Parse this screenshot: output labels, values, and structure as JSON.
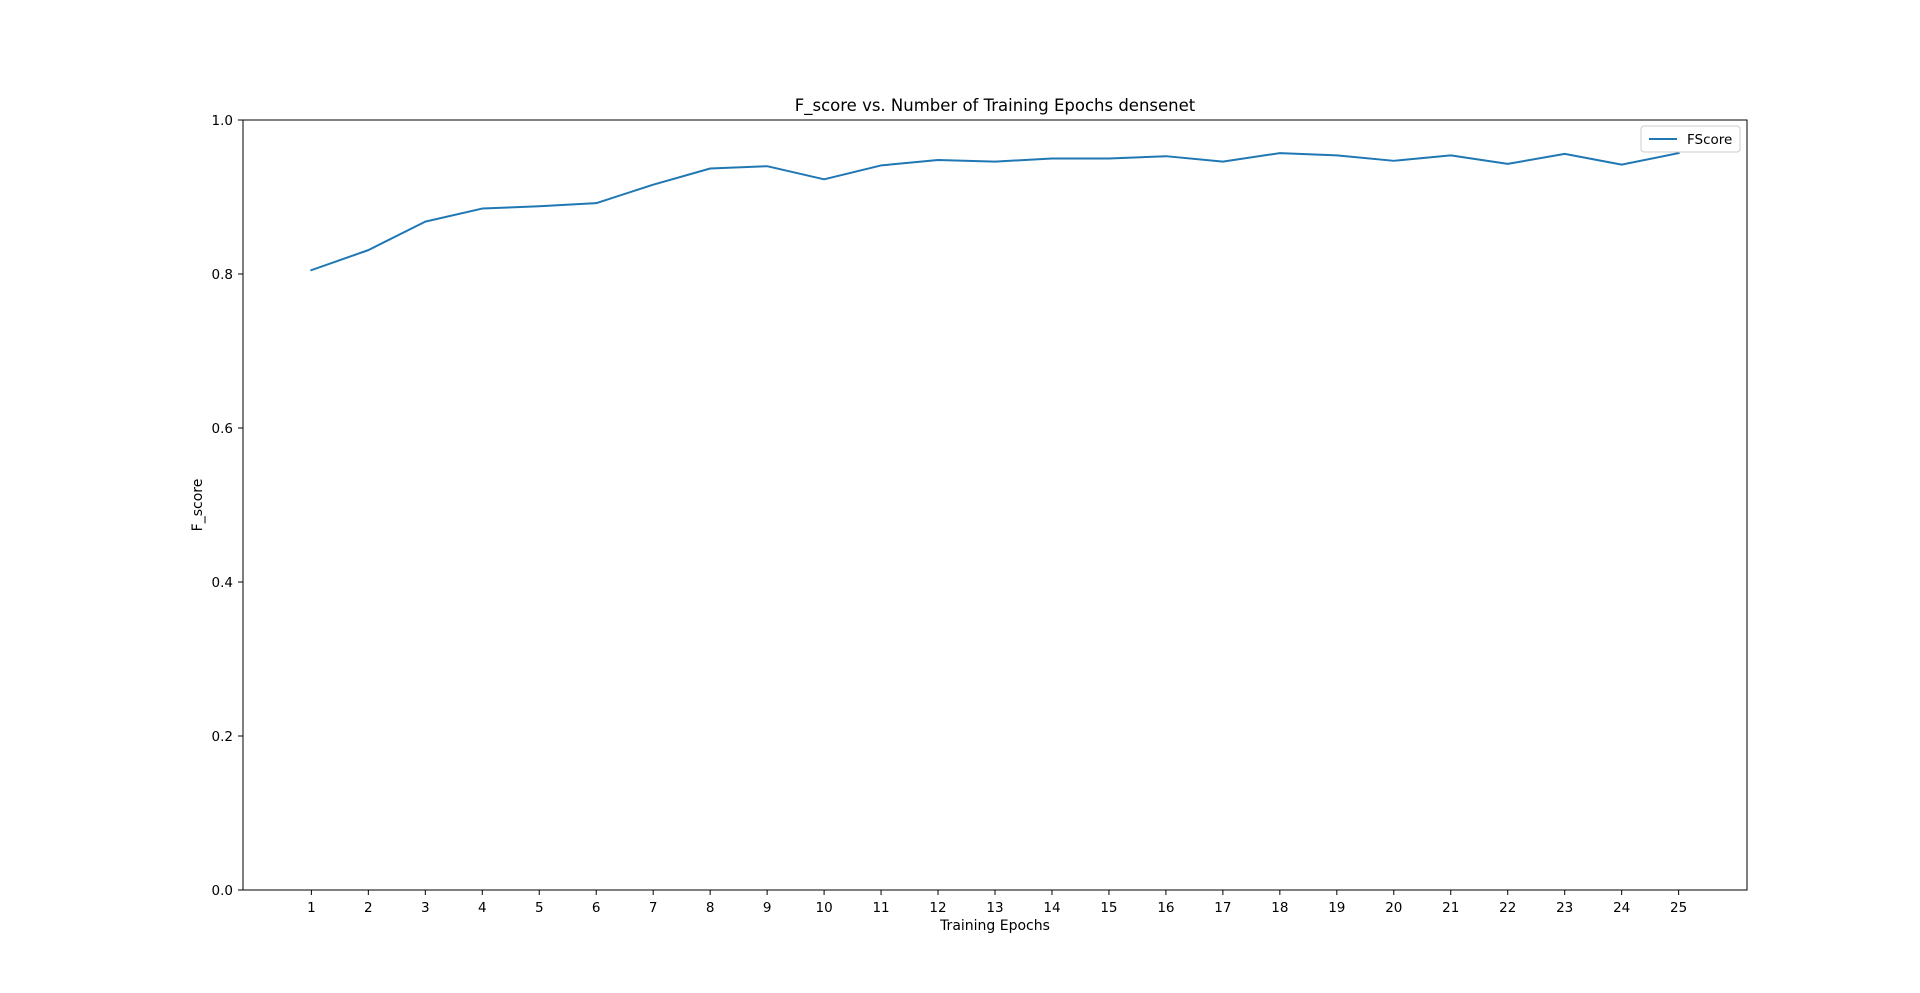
{
  "chart_data": {
    "type": "line",
    "title": "F_score vs. Number of Training Epochs densenet",
    "xlabel": "Training Epochs",
    "ylabel": "F_score",
    "xlim": [
      -0.2,
      26.2
    ],
    "ylim": [
      0.0,
      1.0
    ],
    "x": [
      1,
      2,
      3,
      4,
      5,
      6,
      7,
      8,
      9,
      10,
      11,
      12,
      13,
      14,
      15,
      16,
      17,
      18,
      19,
      20,
      21,
      22,
      23,
      24,
      25
    ],
    "xticks": [
      "1",
      "2",
      "3",
      "4",
      "5",
      "6",
      "7",
      "8",
      "9",
      "10",
      "11",
      "12",
      "13",
      "14",
      "15",
      "16",
      "17",
      "18",
      "19",
      "20",
      "21",
      "22",
      "23",
      "24",
      "25"
    ],
    "yticks": [
      "0.0",
      "0.2",
      "0.4",
      "0.6",
      "0.8",
      "1.0"
    ],
    "grid": false,
    "legend_position": "top-right",
    "series": [
      {
        "name": "FScore",
        "color": "#1f77b4",
        "values": [
          0.805,
          0.831,
          0.868,
          0.885,
          0.888,
          0.892,
          0.916,
          0.937,
          0.94,
          0.923,
          0.941,
          0.948,
          0.946,
          0.95,
          0.95,
          0.953,
          0.946,
          0.957,
          0.954,
          0.947,
          0.954,
          0.943,
          0.956,
          0.942,
          0.957
        ]
      }
    ]
  }
}
